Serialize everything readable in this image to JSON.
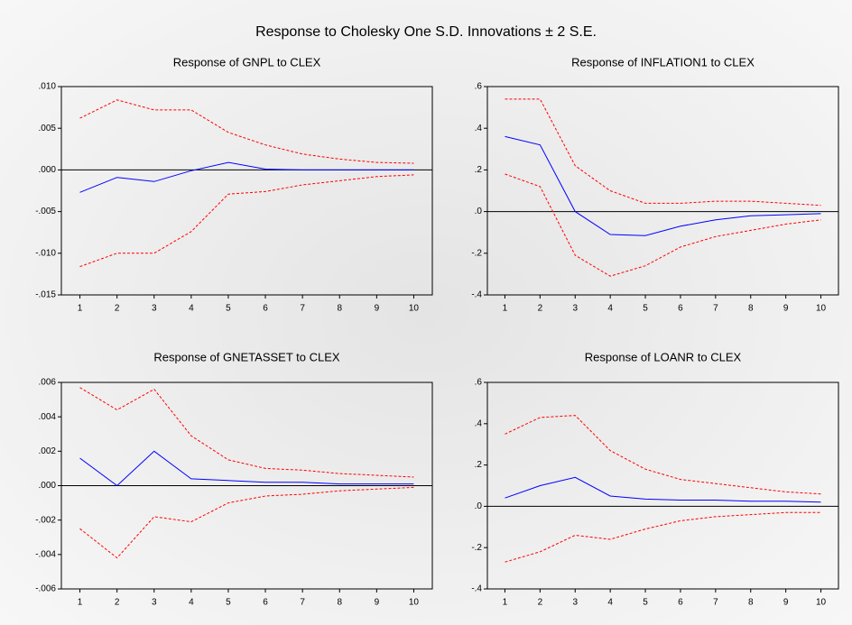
{
  "title": "Response to Cholesky One S.D. Innovations ± 2 S.E.",
  "chart_data": [
    {
      "type": "line",
      "title": "Response of GNPL to CLEX",
      "categories": [
        1,
        2,
        3,
        4,
        5,
        6,
        7,
        8,
        9,
        10
      ],
      "series": [
        {
          "color": "#0000ff",
          "dashed": false,
          "values": [
            -0.0027,
            -0.0009,
            -0.0014,
            -0.0001,
            0.0009,
            0.0001,
            0,
            0,
            0,
            0
          ]
        },
        {
          "color": "#ff0000",
          "dashed": true,
          "values": [
            0.0062,
            0.0084,
            0.0072,
            0.0072,
            0.0045,
            0.003,
            0.0019,
            0.0013,
            0.0009,
            0.0008
          ]
        },
        {
          "color": "#ff0000",
          "dashed": true,
          "values": [
            -0.0116,
            -0.01,
            -0.01,
            -0.0074,
            -0.0029,
            -0.0026,
            -0.0018,
            -0.0013,
            -0.0008,
            -0.0006
          ]
        }
      ],
      "ylim": [
        -0.015,
        0.01
      ],
      "yticks": [
        {
          "value": -0.015,
          "label": "-.015"
        },
        {
          "value": -0.01,
          "label": "-.010"
        },
        {
          "value": -0.005,
          "label": "-.005"
        },
        {
          "value": 0,
          "label": ".000"
        },
        {
          "value": 0.005,
          "label": ".005"
        },
        {
          "value": 0.01,
          "label": ".010"
        }
      ]
    },
    {
      "type": "line",
      "title": "Response of INFLATION1 to CLEX",
      "categories": [
        1,
        2,
        3,
        4,
        5,
        6,
        7,
        8,
        9,
        10
      ],
      "series": [
        {
          "color": "#0000ff",
          "dashed": false,
          "values": [
            0.36,
            0.32,
            0.0,
            -0.11,
            -0.115,
            -0.07,
            -0.04,
            -0.02,
            -0.015,
            -0.01
          ]
        },
        {
          "color": "#ff0000",
          "dashed": true,
          "values": [
            0.54,
            0.54,
            0.22,
            0.1,
            0.04,
            0.04,
            0.05,
            0.05,
            0.04,
            0.03
          ]
        },
        {
          "color": "#ff0000",
          "dashed": true,
          "values": [
            0.18,
            0.12,
            -0.21,
            -0.31,
            -0.26,
            -0.17,
            -0.12,
            -0.09,
            -0.06,
            -0.04
          ]
        }
      ],
      "ylim": [
        -0.4,
        0.6
      ],
      "yticks": [
        {
          "value": -0.4,
          "label": "-.4"
        },
        {
          "value": -0.2,
          "label": "-.2"
        },
        {
          "value": 0,
          "label": ".0"
        },
        {
          "value": 0.2,
          "label": ".2"
        },
        {
          "value": 0.4,
          "label": ".4"
        },
        {
          "value": 0.6,
          "label": ".6"
        }
      ]
    },
    {
      "type": "line",
      "title": "Response of GNETASSET to CLEX",
      "categories": [
        1,
        2,
        3,
        4,
        5,
        6,
        7,
        8,
        9,
        10
      ],
      "series": [
        {
          "color": "#0000ff",
          "dashed": false,
          "values": [
            0.0016,
            0.0,
            0.002,
            0.0004,
            0.0003,
            0.0002,
            0.0002,
            0.0001,
            0.0001,
            0.0001
          ]
        },
        {
          "color": "#ff0000",
          "dashed": true,
          "values": [
            0.0057,
            0.0044,
            0.0056,
            0.0029,
            0.0015,
            0.001,
            0.0009,
            0.0007,
            0.0006,
            0.0005
          ]
        },
        {
          "color": "#ff0000",
          "dashed": true,
          "values": [
            -0.0025,
            -0.0042,
            -0.0018,
            -0.0021,
            -0.001,
            -0.0006,
            -0.0005,
            -0.0003,
            -0.0002,
            -0.0001
          ]
        }
      ],
      "ylim": [
        -0.006,
        0.006
      ],
      "yticks": [
        {
          "value": -0.006,
          "label": "-.006"
        },
        {
          "value": -0.004,
          "label": "-.004"
        },
        {
          "value": -0.002,
          "label": "-.002"
        },
        {
          "value": 0,
          "label": ".000"
        },
        {
          "value": 0.002,
          "label": ".002"
        },
        {
          "value": 0.004,
          "label": ".004"
        },
        {
          "value": 0.006,
          "label": ".006"
        }
      ]
    },
    {
      "type": "line",
      "title": "Response of LOANR to CLEX",
      "categories": [
        1,
        2,
        3,
        4,
        5,
        6,
        7,
        8,
        9,
        10
      ],
      "series": [
        {
          "color": "#0000ff",
          "dashed": false,
          "values": [
            0.04,
            0.1,
            0.14,
            0.05,
            0.035,
            0.03,
            0.03,
            0.025,
            0.025,
            0.02
          ]
        },
        {
          "color": "#ff0000",
          "dashed": true,
          "values": [
            0.35,
            0.43,
            0.44,
            0.27,
            0.18,
            0.13,
            0.11,
            0.09,
            0.07,
            0.06
          ]
        },
        {
          "color": "#ff0000",
          "dashed": true,
          "values": [
            -0.27,
            -0.22,
            -0.14,
            -0.16,
            -0.11,
            -0.07,
            -0.05,
            -0.04,
            -0.03,
            -0.03
          ]
        }
      ],
      "ylim": [
        -0.4,
        0.6
      ],
      "yticks": [
        {
          "value": -0.4,
          "label": "-.4"
        },
        {
          "value": -0.2,
          "label": "-.2"
        },
        {
          "value": 0,
          "label": ".0"
        },
        {
          "value": 0.2,
          "label": ".2"
        },
        {
          "value": 0.4,
          "label": ".4"
        },
        {
          "value": 0.6,
          "label": ".6"
        }
      ]
    }
  ]
}
